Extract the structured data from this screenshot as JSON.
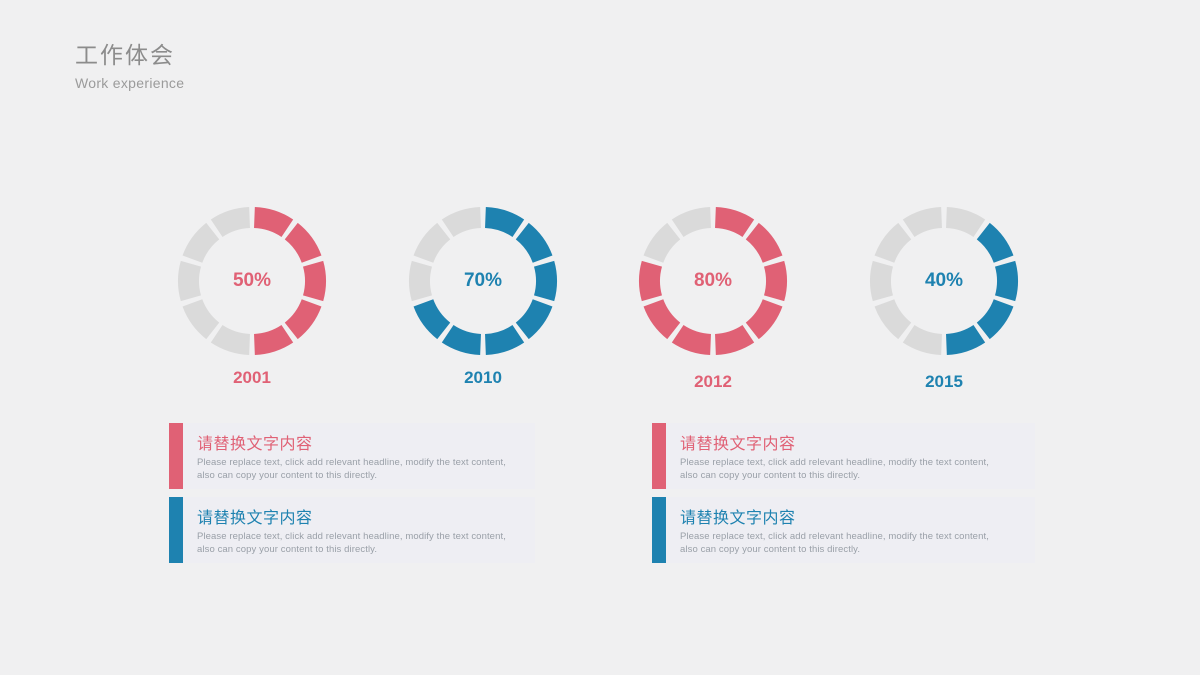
{
  "header": {
    "title": "工作体会",
    "subtitle": "Work experience"
  },
  "colors": {
    "background": "#f0f0f1",
    "red_accent": "#e06175",
    "blue_accent": "#1e82b0",
    "inactive_segment": "#dadada",
    "block_background": "#eeeef3",
    "body_text": "#9aa0a8",
    "header_text": "#8c8c8c"
  },
  "chart_data": {
    "type": "donut-multiples",
    "description": "Four segmented ring (donut) progress charts, 10 segments of 36 degrees each, percent label centered, year label beneath",
    "segments_per_ring": 10,
    "inactive_color": "#dadada",
    "charts": [
      {
        "year": "2001",
        "percent": 50,
        "label": "50%",
        "color": "#e06175",
        "filled_from": 0,
        "filled_count": 5
      },
      {
        "year": "2010",
        "percent": 70,
        "label": "70%",
        "color": "#1e82b0",
        "filled_from": 0,
        "filled_count": 7
      },
      {
        "year": "2012",
        "percent": 80,
        "label": "80%",
        "color": "#e06175",
        "filled_from": 0,
        "filled_count": 8
      },
      {
        "year": "2015",
        "percent": 40,
        "label": "40%",
        "color": "#1e82b0",
        "filled_from": 1,
        "filled_count": 4
      }
    ]
  },
  "blocks": [
    {
      "accent": "#e06175",
      "title_color": "#e06175",
      "title": "请替换文字内容",
      "body_lines": [
        "Please replace text, click add relevant headline, modify the text content,",
        "also can copy your content to this directly."
      ]
    },
    {
      "accent": "#1e82b0",
      "title_color": "#1e82b0",
      "title": "请替换文字内容",
      "body_lines": [
        "Please replace text, click add relevant headline, modify the text content,",
        "also can copy your content to this directly."
      ]
    },
    {
      "accent": "#e06175",
      "title_color": "#e06175",
      "title": "请替换文字内容",
      "body_lines": [
        "Please replace text, click add relevant headline, modify the text content,",
        "also can copy your content to this directly."
      ]
    },
    {
      "accent": "#1e82b0",
      "title_color": "#1e82b0",
      "title": "请替换文字内容",
      "body_lines": [
        "Please replace text, click add relevant headline, modify the text content,",
        "also can copy your content to this directly."
      ]
    }
  ]
}
